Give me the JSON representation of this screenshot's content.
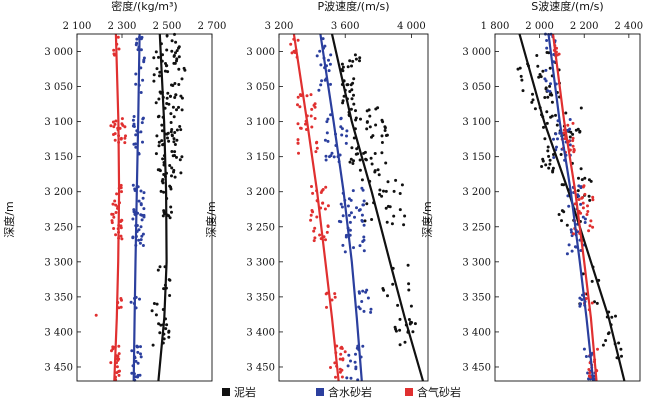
{
  "legend": [
    {
      "label": "泥岩",
      "color": "#111111"
    },
    {
      "label": "含水砂岩",
      "color": "#2b3f9e"
    },
    {
      "label": "含气砂岩",
      "color": "#e03030"
    }
  ],
  "ylabel": "深度/m",
  "chart_data": [
    {
      "type": "scatter",
      "title": "密度/(kg/m³)",
      "xlabel": "密度/(kg/m³)",
      "ylabel": "深度/m",
      "xlim": [
        2100,
        2700
      ],
      "ylim": [
        2975,
        3470
      ],
      "xticks": [
        2100,
        2300,
        2500,
        2700
      ],
      "xtick_labels": [
        "2 100",
        "2 300",
        "2 500",
        "2 700"
      ],
      "yticks": [
        3000,
        3050,
        3100,
        3150,
        3200,
        3250,
        3300,
        3350,
        3400,
        3450
      ],
      "ytick_labels": [
        "3 000",
        "3 050",
        "3 100",
        "3 150",
        "3 200",
        "3 250",
        "3 300",
        "3 350",
        "3 400",
        "3 450"
      ],
      "trends": [
        {
          "name": "泥岩",
          "points": [
            [
              2468,
              2975
            ],
            [
              2487,
              3100
            ],
            [
              2496,
              3200
            ],
            [
              2498,
              3300
            ],
            [
              2488,
              3380
            ],
            [
              2462,
              3470
            ]
          ]
        },
        {
          "name": "含水砂岩",
          "points": [
            [
              2378,
              2975
            ],
            [
              2372,
              3100
            ],
            [
              2366,
              3200
            ],
            [
              2360,
              3300
            ],
            [
              2356,
              3380
            ],
            [
              2352,
              3470
            ]
          ]
        },
        {
          "name": "含气砂岩",
          "points": [
            [
              2273,
              2975
            ],
            [
              2284,
              3100
            ],
            [
              2287,
              3200
            ],
            [
              2283,
              3300
            ],
            [
              2277,
              3380
            ],
            [
              2266,
              3470
            ]
          ]
        }
      ],
      "series": [
        {
          "name": "泥岩",
          "clusters": [
            {
              "y": [
                2975,
                3080
              ],
              "x": [
                2440,
                2580
              ],
              "n": 60
            },
            {
              "y": [
                3080,
                3180
              ],
              "x": [
                2450,
                2570
              ],
              "n": 60
            },
            {
              "y": [
                3180,
                3240
              ],
              "x": [
                2470,
                2530
              ],
              "n": 18
            },
            {
              "y": [
                3300,
                3360
              ],
              "x": [
                2440,
                2530
              ],
              "n": 10
            },
            {
              "y": [
                3360,
                3420
              ],
              "x": [
                2430,
                2510
              ],
              "n": 18
            }
          ]
        },
        {
          "name": "含水砂岩",
          "clusters": [
            {
              "y": [
                2975,
                3060
              ],
              "x": [
                2360,
                2400
              ],
              "n": 18
            },
            {
              "y": [
                3090,
                3150
              ],
              "x": [
                2350,
                2400
              ],
              "n": 18
            },
            {
              "y": [
                3190,
                3280
              ],
              "x": [
                2340,
                2400
              ],
              "n": 40
            },
            {
              "y": [
                3350,
                3370
              ],
              "x": [
                2340,
                2380
              ],
              "n": 6
            },
            {
              "y": [
                3420,
                3470
              ],
              "x": [
                2340,
                2390
              ],
              "n": 20
            }
          ]
        },
        {
          "name": "含气砂岩",
          "clusters": [
            {
              "y": [
                2975,
                3010
              ],
              "x": [
                2260,
                2290
              ],
              "n": 6
            },
            {
              "y": [
                3095,
                3130
              ],
              "x": [
                2250,
                2320
              ],
              "n": 22
            },
            {
              "y": [
                3190,
                3270
              ],
              "x": [
                2250,
                2300
              ],
              "n": 30
            },
            {
              "y": [
                3350,
                3370
              ],
              "x": [
                2270,
                2300
              ],
              "n": 6
            },
            {
              "y": [
                3420,
                3470
              ],
              "x": [
                2250,
                2290
              ],
              "n": 20
            },
            {
              "y": [
                3375,
                3380
              ],
              "x": [
                2180,
                2190
              ],
              "n": 1
            }
          ]
        }
      ]
    },
    {
      "type": "scatter",
      "title": "P波速度/(m/s)",
      "xlabel": "P波速度/(m/s)",
      "ylabel": "深度/m",
      "xlim": [
        3200,
        4100
      ],
      "ylim": [
        2975,
        3470
      ],
      "xticks": [
        3200,
        3600,
        4000
      ],
      "xtick_labels": [
        "3 200",
        "3 600",
        "4 000"
      ],
      "yticks": [
        3000,
        3050,
        3100,
        3150,
        3200,
        3250,
        3300,
        3350,
        3400,
        3450
      ],
      "ytick_labels": [
        "3 000",
        "3 050",
        "3 100",
        "3 150",
        "3 200",
        "3 250",
        "3 300",
        "3 350",
        "3 400",
        "3 450"
      ],
      "trends": [
        {
          "name": "泥岩",
          "points": [
            [
              3520,
              2975
            ],
            [
              3640,
              3100
            ],
            [
              3760,
              3200
            ],
            [
              3870,
              3300
            ],
            [
              3960,
              3380
            ],
            [
              4070,
              3470
            ]
          ]
        },
        {
          "name": "含水砂岩",
          "points": [
            [
              3450,
              2975
            ],
            [
              3530,
              3100
            ],
            [
              3590,
              3200
            ],
            [
              3640,
              3300
            ],
            [
              3670,
              3380
            ],
            [
              3700,
              3470
            ]
          ]
        },
        {
          "name": "含气砂岩",
          "points": [
            [
              3290,
              2975
            ],
            [
              3370,
              3100
            ],
            [
              3430,
              3200
            ],
            [
              3480,
              3300
            ],
            [
              3520,
              3380
            ],
            [
              3560,
              3470
            ]
          ]
        }
      ],
      "series": [
        {
          "name": "泥岩",
          "clusters": [
            {
              "y": [
                3000,
                3080
              ],
              "x": [
                3580,
                3700
              ],
              "n": 30
            },
            {
              "y": [
                3080,
                3180
              ],
              "x": [
                3620,
                3860
              ],
              "n": 55
            },
            {
              "y": [
                3180,
                3250
              ],
              "x": [
                3700,
                3960
              ],
              "n": 25
            },
            {
              "y": [
                3300,
                3350
              ],
              "x": [
                3820,
                3990
              ],
              "n": 8
            },
            {
              "y": [
                3360,
                3420
              ],
              "x": [
                3900,
                4050
              ],
              "n": 18
            }
          ]
        },
        {
          "name": "含水砂岩",
          "clusters": [
            {
              "y": [
                2975,
                3060
              ],
              "x": [
                3420,
                3520
              ],
              "n": 20
            },
            {
              "y": [
                3090,
                3160
              ],
              "x": [
                3480,
                3620
              ],
              "n": 25
            },
            {
              "y": [
                3190,
                3290
              ],
              "x": [
                3560,
                3720
              ],
              "n": 40
            },
            {
              "y": [
                3340,
                3380
              ],
              "x": [
                3680,
                3760
              ],
              "n": 12
            },
            {
              "y": [
                3420,
                3470
              ],
              "x": [
                3600,
                3720
              ],
              "n": 15
            }
          ]
        },
        {
          "name": "含气砂岩",
          "clusters": [
            {
              "y": [
                2975,
                3010
              ],
              "x": [
                3260,
                3320
              ],
              "n": 8
            },
            {
              "y": [
                3060,
                3150
              ],
              "x": [
                3310,
                3440
              ],
              "n": 30
            },
            {
              "y": [
                3190,
                3270
              ],
              "x": [
                3380,
                3500
              ],
              "n": 30
            },
            {
              "y": [
                3340,
                3370
              ],
              "x": [
                3480,
                3540
              ],
              "n": 6
            },
            {
              "y": [
                3420,
                3470
              ],
              "x": [
                3500,
                3600
              ],
              "n": 18
            }
          ]
        }
      ]
    },
    {
      "type": "scatter",
      "title": "S波速度/(m/s)",
      "xlabel": "S波速度/(m/s)",
      "ylabel": "深度/m",
      "xlim": [
        1800,
        2450
      ],
      "ylim": [
        2975,
        3470
      ],
      "xticks": [
        1800,
        2000,
        2200,
        2400
      ],
      "xtick_labels": [
        "1 800",
        "2 000",
        "2 200",
        "2 400"
      ],
      "yticks": [
        3000,
        3050,
        3100,
        3150,
        3200,
        3250,
        3300,
        3350,
        3400,
        3450
      ],
      "ytick_labels": [
        "3 000",
        "3 050",
        "3 100",
        "3 150",
        "3 200",
        "3 250",
        "3 300",
        "3 350",
        "3 400",
        "3 450"
      ],
      "trends": [
        {
          "name": "泥岩",
          "points": [
            [
              1910,
              2975
            ],
            [
              2020,
              3100
            ],
            [
              2130,
              3200
            ],
            [
              2230,
              3300
            ],
            [
              2310,
              3380
            ],
            [
              2380,
              3470
            ]
          ]
        },
        {
          "name": "含水砂岩",
          "points": [
            [
              2040,
              2975
            ],
            [
              2090,
              3100
            ],
            [
              2140,
              3200
            ],
            [
              2180,
              3300
            ],
            [
              2210,
              3380
            ],
            [
              2240,
              3470
            ]
          ]
        },
        {
          "name": "含气砂岩",
          "points": [
            [
              2060,
              2975
            ],
            [
              2110,
              3100
            ],
            [
              2160,
              3200
            ],
            [
              2200,
              3300
            ],
            [
              2230,
              3380
            ],
            [
              2255,
              3470
            ]
          ]
        }
      ],
      "series": [
        {
          "name": "泥岩",
          "clusters": [
            {
              "y": [
                3000,
                3080
              ],
              "x": [
                1900,
                2090
              ],
              "n": 35
            },
            {
              "y": [
                3080,
                3180
              ],
              "x": [
                1980,
                2190
              ],
              "n": 45
            },
            {
              "y": [
                3180,
                3250
              ],
              "x": [
                2080,
                2240
              ],
              "n": 20
            },
            {
              "y": [
                3300,
                3360
              ],
              "x": [
                2160,
                2280
              ],
              "n": 8
            },
            {
              "y": [
                3370,
                3440
              ],
              "x": [
                2280,
                2370
              ],
              "n": 15
            }
          ]
        },
        {
          "name": "含水砂岩",
          "clusters": [
            {
              "y": [
                2975,
                3060
              ],
              "x": [
                2020,
                2080
              ],
              "n": 18
            },
            {
              "y": [
                3090,
                3160
              ],
              "x": [
                2060,
                2140
              ],
              "n": 20
            },
            {
              "y": [
                3190,
                3290
              ],
              "x": [
                2120,
                2210
              ],
              "n": 30
            },
            {
              "y": [
                3340,
                3380
              ],
              "x": [
                2180,
                2220
              ],
              "n": 8
            },
            {
              "y": [
                3420,
                3470
              ],
              "x": [
                2200,
                2250
              ],
              "n": 15
            }
          ]
        },
        {
          "name": "含气砂岩",
          "clusters": [
            {
              "y": [
                2975,
                3010
              ],
              "x": [
                2060,
                2090
              ],
              "n": 6
            },
            {
              "y": [
                3100,
                3150
              ],
              "x": [
                2100,
                2160
              ],
              "n": 18
            },
            {
              "y": [
                3190,
                3270
              ],
              "x": [
                2150,
                2240
              ],
              "n": 28
            },
            {
              "y": [
                3340,
                3370
              ],
              "x": [
                2200,
                2240
              ],
              "n": 6
            },
            {
              "y": [
                3420,
                3470
              ],
              "x": [
                2220,
                2260
              ],
              "n": 14
            }
          ]
        }
      ]
    }
  ]
}
